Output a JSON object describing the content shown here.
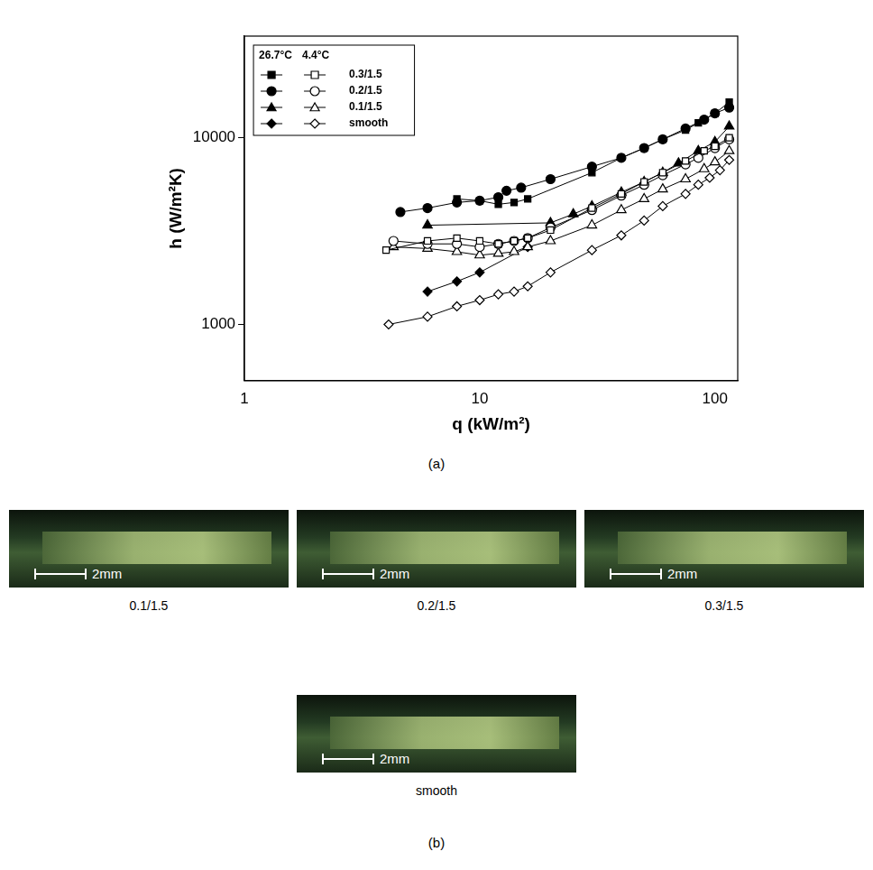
{
  "chart_data": {
    "type": "scatter",
    "log": true,
    "grid": false,
    "legend": "upper left",
    "x_label": "q (kW/m²)",
    "y_label": "h (W/m²K)",
    "xlim": [
      1,
      125
    ],
    "xticks": [
      1,
      10,
      100
    ],
    "ylim": [
      500,
      35000
    ],
    "yticks": [
      1000,
      10000
    ],
    "series": [
      {
        "name": "0.3/1.5",
        "group": "26.7°C",
        "marker": "square",
        "color": "#000000",
        "x": [
          8,
          10,
          12,
          14,
          16,
          30,
          40,
          50,
          60,
          75,
          85,
          100,
          115
        ],
        "values": [
          4700,
          4600,
          4400,
          4500,
          4700,
          6500,
          7800,
          8800,
          9800,
          11000,
          12000,
          13500,
          15500
        ]
      },
      {
        "name": "0.3/1.5",
        "group": "4.4°C",
        "marker": "square-open",
        "color": "#000000",
        "x": [
          4,
          6,
          8,
          10,
          12,
          14,
          16,
          20,
          30,
          40,
          50,
          60,
          75,
          90,
          100,
          115
        ],
        "values": [
          2500,
          2800,
          2900,
          2800,
          2700,
          2800,
          2900,
          3200,
          4200,
          5000,
          5800,
          6500,
          7500,
          8500,
          9000,
          10000
        ]
      },
      {
        "name": "0.2/1.5",
        "group": "26.7°C",
        "marker": "circle",
        "color": "#000000",
        "x": [
          4.6,
          6,
          8,
          10,
          12,
          13,
          15,
          20,
          30,
          40,
          50,
          60,
          75,
          90,
          100,
          115
        ],
        "values": [
          4000,
          4200,
          4500,
          4600,
          4800,
          5200,
          5400,
          6000,
          7000,
          7800,
          8800,
          9800,
          11200,
          12500,
          13500,
          14500
        ]
      },
      {
        "name": "0.2/1.5",
        "group": "4.4°C",
        "marker": "circle-open",
        "color": "#000000",
        "x": [
          4.3,
          6,
          8,
          10,
          12,
          14,
          16,
          20,
          30,
          40,
          50,
          60,
          75,
          85,
          100,
          115
        ],
        "values": [
          2800,
          2700,
          2700,
          2600,
          2700,
          2800,
          2900,
          3300,
          4100,
          4900,
          5600,
          6300,
          7200,
          7800,
          8800,
          9800
        ]
      },
      {
        "name": "0.1/1.5",
        "group": "26.7°C",
        "marker": "triangle",
        "color": "#000000",
        "x": [
          6,
          20,
          25,
          30,
          40,
          50,
          60,
          70,
          85,
          100,
          115
        ],
        "values": [
          3400,
          3500,
          3900,
          4300,
          5100,
          5800,
          6500,
          7300,
          8500,
          9500,
          11500
        ]
      },
      {
        "name": "0.1/1.5",
        "group": "4.4°C",
        "marker": "triangle-open",
        "color": "#000000",
        "x": [
          4.3,
          6,
          8,
          10,
          12,
          14,
          16,
          20,
          30,
          40,
          50,
          60,
          75,
          90,
          100,
          115
        ],
        "values": [
          2600,
          2550,
          2450,
          2350,
          2400,
          2450,
          2600,
          2800,
          3400,
          4100,
          4700,
          5300,
          6000,
          6800,
          7400,
          8500
        ]
      },
      {
        "name": "smooth",
        "group": "26.7°C",
        "marker": "diamond",
        "color": "#000000",
        "x": [
          6,
          8,
          10,
          16
        ],
        "values": [
          1500,
          1700,
          1900,
          2600
        ]
      },
      {
        "name": "smooth",
        "group": "4.4°C",
        "marker": "diamond-open",
        "color": "#000000",
        "x": [
          4.1,
          6,
          8,
          10,
          12,
          14,
          16,
          20,
          30,
          40,
          50,
          60,
          75,
          85,
          95,
          105,
          115
        ],
        "values": [
          1000,
          1100,
          1250,
          1350,
          1450,
          1500,
          1600,
          1900,
          2500,
          3000,
          3600,
          4300,
          5000,
          5600,
          6100,
          6700,
          7600
        ]
      }
    ]
  },
  "caption_a": "(a)",
  "photos": [
    {
      "caption": "0.1/1.5",
      "scale_bar": "2mm"
    },
    {
      "caption": "0.2/1.5",
      "scale_bar": "2mm"
    },
    {
      "caption": "0.3/1.5",
      "scale_bar": "2mm"
    },
    {
      "caption": "smooth",
      "scale_bar": "2mm"
    }
  ],
  "caption_b": "(b)"
}
